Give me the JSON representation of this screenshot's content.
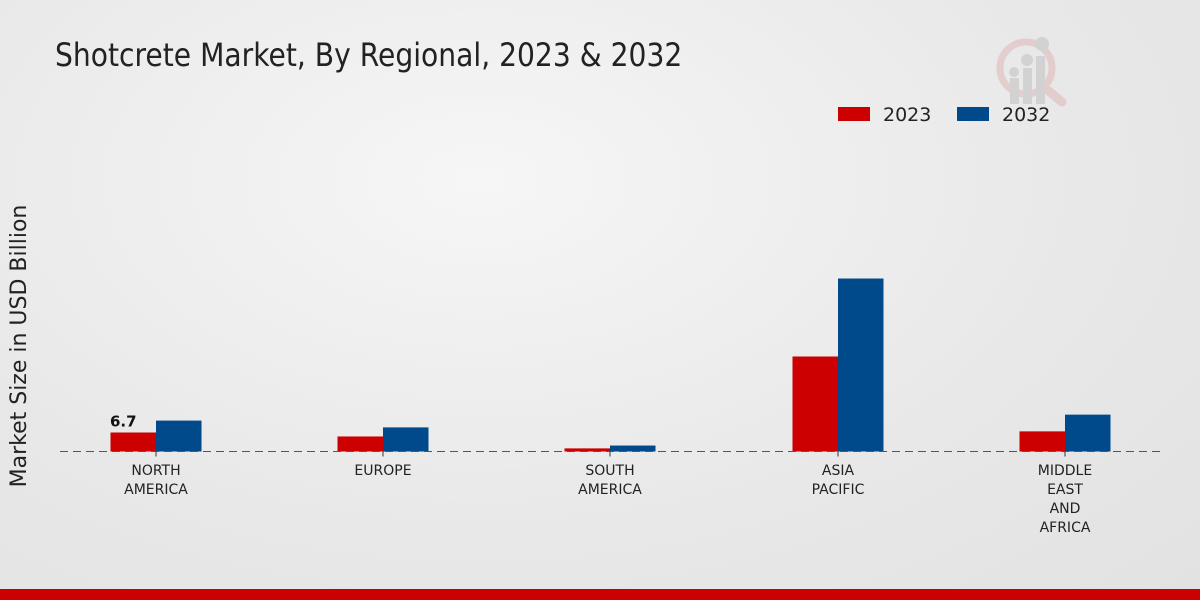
{
  "title": "Shotcrete Market, By Regional, 2023 & 2032",
  "chart_data": {
    "type": "bar",
    "title": "Shotcrete Market, By Regional, 2023 & 2032",
    "ylabel": "Market Size in USD Billion",
    "xlabel": "",
    "categories": [
      "NORTH\nAMERICA",
      "EUROPE",
      "SOUTH\nAMERICA",
      "ASIA\nPACIFIC",
      "MIDDLE\nEAST\nAND\nAFRICA"
    ],
    "series": [
      {
        "name": "2023",
        "color": "#cc0000",
        "values": [
          6.7,
          5.3,
          1.1,
          33.5,
          7.1
        ]
      },
      {
        "name": "2032",
        "color": "#004a8c",
        "values": [
          10.9,
          8.5,
          2.1,
          61.0,
          13.0
        ]
      }
    ],
    "data_labels": [
      {
        "series": 0,
        "index": 0,
        "text": "6.7"
      }
    ],
    "ylim": [
      0,
      100
    ],
    "grid": false,
    "legend": "top-right"
  }
}
